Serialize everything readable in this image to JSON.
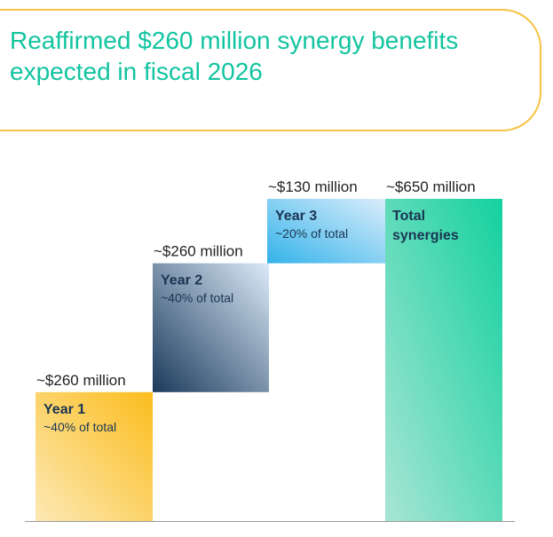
{
  "header": {
    "title_line1": "Reaffirmed $260 million synergy benefits",
    "title_line2": "expected in fiscal 2026"
  },
  "chart_data": {
    "type": "bar",
    "subtype": "waterfall",
    "categories": [
      "Year 1",
      "Year 2",
      "Year 3",
      "Total synergies"
    ],
    "values": [
      260,
      260,
      130,
      650
    ],
    "value_unit": "$ million",
    "value_labels": [
      "~$260 million",
      "~$260 million",
      "~$130 million",
      "~$650 million"
    ],
    "bars": [
      {
        "title": "Year 1",
        "title_lines": [
          "Year 1"
        ],
        "share_label": "~40% of total",
        "value": 260,
        "base": 0,
        "gradient": [
          "#fde9b5",
          "#fbbd1e"
        ]
      },
      {
        "title": "Year 2",
        "title_lines": [
          "Year 2"
        ],
        "share_label": "~40% of total",
        "value": 260,
        "base": 260,
        "gradient": [
          "#dbeaf8",
          "#1b3a5c"
        ]
      },
      {
        "title": "Year 3",
        "title_lines": [
          "Year 3"
        ],
        "share_label": "~20% of total",
        "value": 130,
        "base": 520,
        "gradient": [
          "#daedfb",
          "#34b3ea"
        ]
      },
      {
        "title": "Total synergies",
        "title_lines": [
          "Total",
          "synergies"
        ],
        "share_label": "",
        "value": 650,
        "base": 0,
        "gradient": [
          "#a8e5d4",
          "#14d19f"
        ]
      }
    ],
    "title": "",
    "xlabel": "",
    "ylabel": "",
    "ylim": [
      0,
      650
    ],
    "grid": false,
    "legend": "none"
  },
  "colors": {
    "title_text": "#12c4a0",
    "title_border": "#f5c342",
    "axis_line": "#999999",
    "label_text": "#1a3552"
  }
}
